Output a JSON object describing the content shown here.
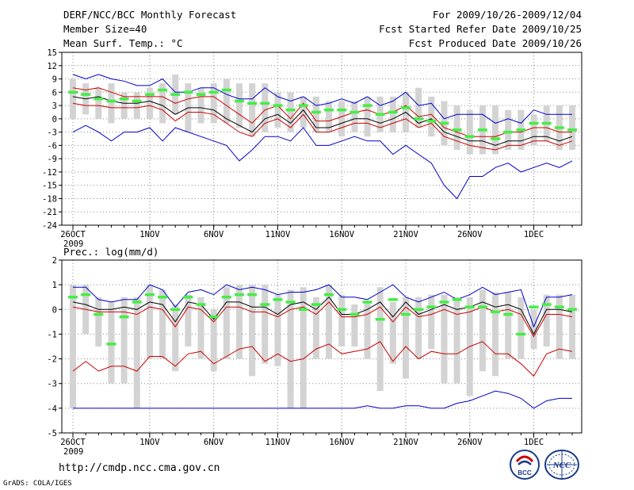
{
  "header": {
    "title": "DERF/NCC/BCC Monthly Forecast",
    "member_size": "Member Size=40",
    "variable": "Mean Surf. Temp.: °C",
    "forecast_period": "For 2009/10/26-2009/12/04",
    "start_date": "Fcst Started Refer Date 2009/10/25",
    "produced_date": "Fcst Produced Date 2009/10/26"
  },
  "footer": {
    "url": "http://cmdp.ncc.cma.gov.cn",
    "credit": "GrADS: COLA/IGES",
    "logo_bcc": "BCC",
    "logo_ncc": "NCC"
  },
  "colors": {
    "box": "#d3d3d3",
    "obs": "#44ee44",
    "max": "#0000cc",
    "mid": "#cc0000",
    "mean": "#000000",
    "grid": "#888888"
  },
  "chart_data": [
    {
      "type": "line",
      "title": "Mean Surf. Temp.: °C",
      "ylabel": "°C",
      "ylim": [
        -24,
        15
      ],
      "yticks": [
        15,
        12,
        9,
        6,
        3,
        0,
        -3,
        -6,
        -9,
        -12,
        -15,
        -18,
        -21,
        -24
      ],
      "x_day_index": [
        0,
        1,
        2,
        3,
        4,
        5,
        6,
        7,
        8,
        9,
        10,
        11,
        12,
        13,
        14,
        15,
        16,
        17,
        18,
        19,
        20,
        21,
        22,
        23,
        24,
        25,
        26,
        27,
        28,
        29,
        30,
        31,
        32,
        33,
        34,
        35,
        36,
        37,
        38,
        39
      ],
      "x_tick_labels": [
        {
          "day": 0,
          "label": "26OCT",
          "year": "2009"
        },
        {
          "day": 6,
          "label": "1NOV"
        },
        {
          "day": 11,
          "label": "6NOV"
        },
        {
          "day": 16,
          "label": "11NOV"
        },
        {
          "day": 21,
          "label": "16NOV"
        },
        {
          "day": 26,
          "label": "21NOV"
        },
        {
          "day": 31,
          "label": "26NOV"
        },
        {
          "day": 36,
          "label": "1DEC"
        }
      ],
      "series": [
        {
          "name": "box_high",
          "values": [
            9,
            8,
            7,
            8,
            6,
            6,
            7,
            8,
            10,
            8,
            7,
            8,
            9,
            8,
            8,
            8,
            6,
            6,
            5,
            5,
            4,
            4,
            4,
            5,
            5,
            5,
            6,
            7,
            5,
            4,
            3,
            2,
            3,
            3,
            2,
            2,
            1,
            3,
            3,
            3
          ]
        },
        {
          "name": "box_low",
          "values": [
            0,
            1,
            0,
            -1,
            0,
            0,
            0,
            -1,
            1,
            -3,
            -1,
            -1,
            -1,
            -2,
            -4,
            -3,
            -2,
            -3,
            -2,
            -3,
            -3,
            -4,
            -3,
            -4,
            -3,
            -3,
            -3,
            -2,
            -4,
            -6,
            -7,
            -8,
            -8,
            -8,
            -7,
            -7,
            -6,
            -5,
            -7,
            -7
          ]
        },
        {
          "name": "max",
          "values": [
            10,
            9,
            10,
            9,
            8.5,
            7.5,
            7.5,
            9,
            6,
            6,
            7,
            7,
            5.5,
            4.5,
            4.5,
            7,
            5,
            4,
            5,
            3,
            3.5,
            4.5,
            3.5,
            5,
            3,
            4,
            6,
            3,
            3.5,
            0,
            1,
            1,
            1,
            -1,
            0,
            -1,
            2,
            1,
            1,
            1
          ]
        },
        {
          "name": "upper_red",
          "values": [
            7,
            6.5,
            7,
            6,
            5,
            5,
            5,
            5,
            3.5,
            4.5,
            5,
            5,
            3,
            1,
            -1,
            2,
            3,
            0,
            3.5,
            -0.5,
            -0.5,
            0.5,
            1.5,
            2,
            1,
            1.5,
            3,
            0.5,
            1,
            -2,
            -3,
            -4,
            -4,
            -4,
            -3,
            -3,
            -2,
            -2,
            -3,
            -3
          ]
        },
        {
          "name": "mean",
          "values": [
            5,
            4.5,
            5,
            4,
            3.5,
            3.5,
            4,
            3,
            1,
            2.5,
            2.5,
            2,
            0,
            -1.5,
            -3,
            0,
            1,
            -1,
            2,
            -2,
            -2,
            -1,
            0,
            0,
            -1,
            0,
            1.5,
            -1,
            0,
            -3,
            -4,
            -5,
            -5,
            -6,
            -5,
            -5,
            -4,
            -4,
            -5,
            -4
          ]
        },
        {
          "name": "lower_red",
          "values": [
            3.5,
            3,
            3,
            2.5,
            2.5,
            2.5,
            3,
            2,
            -0.5,
            1.5,
            1.5,
            1,
            -1,
            -3,
            -4,
            -1,
            0,
            -2,
            1,
            -3,
            -3,
            -2,
            -1,
            -1,
            -2,
            -1,
            0,
            -2,
            -1,
            -4,
            -5,
            -6,
            -6.5,
            -7,
            -6,
            -6,
            -5,
            -5,
            -6,
            -5
          ]
        },
        {
          "name": "min",
          "values": [
            -3,
            -1.5,
            -3,
            -5,
            -3,
            -3,
            -2,
            -5,
            -2,
            -3,
            -4,
            -5,
            -6,
            -9.5,
            -7,
            -4,
            -4,
            -5,
            -2,
            -6,
            -6,
            -5,
            -4,
            -5,
            -5,
            -8,
            -6,
            -8,
            -10,
            -15,
            -18,
            -13,
            -13,
            -11,
            -10,
            -12,
            -11,
            -10,
            -11,
            -9.5
          ]
        },
        {
          "name": "observed",
          "values": [
            6,
            5.5,
            4.5,
            4,
            4.5,
            4,
            5.5,
            6.5,
            5.5,
            6,
            5.5,
            6,
            6.5,
            4,
            3.5,
            3.5,
            3,
            2,
            3,
            1.5,
            2,
            2,
            1.5,
            3,
            1,
            1.5,
            2.5,
            0,
            -0.5,
            -1,
            -2.5,
            -4,
            -2.5,
            -4.5,
            -3,
            -2.5,
            -1,
            -1,
            -2,
            -2.5
          ]
        }
      ]
    },
    {
      "type": "line",
      "title": "Prec.: log(mm/d)",
      "ylabel": "log(mm/d)",
      "ylim": [
        -5,
        2
      ],
      "yticks": [
        2,
        1,
        0,
        -1,
        -2,
        -3,
        -4,
        -5
      ],
      "x_day_index": [
        0,
        1,
        2,
        3,
        4,
        5,
        6,
        7,
        8,
        9,
        10,
        11,
        12,
        13,
        14,
        15,
        16,
        17,
        18,
        19,
        20,
        21,
        22,
        23,
        24,
        25,
        26,
        27,
        28,
        29,
        30,
        31,
        32,
        33,
        34,
        35,
        36,
        37,
        38,
        39
      ],
      "x_tick_labels": [
        {
          "day": 0,
          "label": "26OCT",
          "year": "2009"
        },
        {
          "day": 6,
          "label": "1NOV"
        },
        {
          "day": 11,
          "label": "6NOV"
        },
        {
          "day": 16,
          "label": "11NOV"
        },
        {
          "day": 21,
          "label": "16NOV"
        },
        {
          "day": 26,
          "label": "21NOV"
        },
        {
          "day": 31,
          "label": "26NOV"
        },
        {
          "day": 36,
          "label": "1DEC"
        }
      ],
      "series": [
        {
          "name": "box_high",
          "values": [
            1,
            1,
            0.5,
            0.3,
            0.5,
            0.5,
            1,
            0.8,
            0.2,
            0.6,
            0.5,
            0,
            0.9,
            1,
            1,
            1,
            0.6,
            0.8,
            0.9,
            0.5,
            1,
            0.6,
            0.2,
            0.3,
            0.9,
            0.3,
            0.5,
            0.5,
            0.6,
            0.6,
            0.5,
            0.5,
            0.8,
            0.7,
            0.7,
            0.5,
            0,
            0.6,
            0.6,
            0.6
          ]
        },
        {
          "name": "box_low",
          "values": [
            -4,
            -1,
            -1.5,
            -3,
            -3,
            -4,
            -2,
            -2,
            -2.5,
            -1.5,
            -2,
            -2.5,
            -2,
            -2,
            -2.7,
            -2.2,
            -2.3,
            -4,
            -4,
            -2,
            -2,
            -1.5,
            -1.5,
            -2,
            -3.3,
            -2.2,
            -2.8,
            -2,
            -1.6,
            -3,
            -3,
            -3.5,
            -2.5,
            -2.7,
            -2,
            -2,
            -1.6,
            -1.5,
            -2,
            -2
          ]
        },
        {
          "name": "max",
          "values": [
            0.9,
            0.9,
            0.4,
            0.3,
            0.4,
            0.4,
            1,
            0.8,
            0.1,
            0.7,
            0.8,
            0.6,
            1,
            0.8,
            0.9,
            0.8,
            0.6,
            0.7,
            0.7,
            0.8,
            1,
            0.5,
            0.5,
            0.4,
            0.7,
            1,
            0.5,
            0.3,
            0.5,
            0.7,
            0.4,
            0.6,
            0.9,
            0.6,
            0.7,
            0.8,
            -0.7,
            0.5,
            0.5,
            0.6
          ]
        },
        {
          "name": "mean",
          "values": [
            0.3,
            0.2,
            0,
            0,
            0.1,
            0,
            0.3,
            0.2,
            -0.5,
            0.3,
            0.2,
            -0.4,
            0.3,
            0.3,
            0.1,
            0.1,
            -0.2,
            0.2,
            0.3,
            0,
            0.5,
            -0.2,
            -0.2,
            0,
            0.3,
            -0.3,
            0.3,
            -0.2,
            0,
            0.2,
            0,
            0.1,
            0.3,
            0.1,
            0.2,
            0,
            -1,
            0,
            0,
            -0.1
          ]
        },
        {
          "name": "upper_red",
          "values": [
            0.1,
            0,
            -0.1,
            -0.1,
            -0.1,
            -0.2,
            0.1,
            0,
            -0.7,
            0.1,
            0,
            -0.5,
            0.1,
            0.1,
            -0.1,
            -0.1,
            -0.3,
            0,
            0.1,
            -0.2,
            0.3,
            -0.3,
            -0.3,
            -0.2,
            0.1,
            -0.5,
            0.1,
            -0.3,
            -0.2,
            0,
            -0.2,
            -0.1,
            0.1,
            -0.1,
            0,
            -0.2,
            -1.1,
            -0.2,
            -0.2,
            -0.3
          ]
        },
        {
          "name": "lower_red",
          "values": [
            -2.5,
            -2.1,
            -2.5,
            -2.3,
            -2.3,
            -2.5,
            -1.9,
            -1.9,
            -2.3,
            -1.8,
            -1.7,
            -2.2,
            -1.9,
            -1.6,
            -1.5,
            -2.1,
            -1.8,
            -2.1,
            -2.0,
            -1.6,
            -1.4,
            -1.8,
            -1.7,
            -1.6,
            -1.3,
            -2.1,
            -1.5,
            -2.0,
            -1.7,
            -1.8,
            -1.8,
            -1.5,
            -1.3,
            -1.8,
            -1.8,
            -2.2,
            -2.7,
            -1.8,
            -1.6,
            -1.7
          ]
        },
        {
          "name": "min",
          "values": [
            -4,
            -4,
            -4,
            -4,
            -4,
            -4,
            -4,
            -4,
            -4,
            -4,
            -4,
            -4,
            -4,
            -4,
            -4,
            -4,
            -4,
            -4,
            -4,
            -4,
            -4,
            -4,
            -4,
            -3.9,
            -4,
            -4,
            -3.9,
            -3.9,
            -4,
            -4,
            -3.8,
            -3.7,
            -3.5,
            -3.3,
            -3.4,
            -3.6,
            -4,
            -3.7,
            -3.6,
            -3.6
          ]
        },
        {
          "name": "observed",
          "values": [
            0.5,
            0.6,
            -0.2,
            -1.4,
            -0.3,
            0.3,
            0.6,
            0.5,
            0,
            0.5,
            0.2,
            -0.3,
            0.5,
            0.6,
            0.6,
            0.2,
            0.4,
            0.3,
            0,
            0.2,
            0.6,
            0,
            -0.2,
            0.3,
            -0.4,
            0.4,
            -0.2,
            0,
            0.1,
            0.3,
            0.4,
            0.1,
            0.1,
            -0.1,
            -0.2,
            -1,
            0.1,
            0.2,
            0.1,
            0
          ]
        }
      ]
    }
  ]
}
